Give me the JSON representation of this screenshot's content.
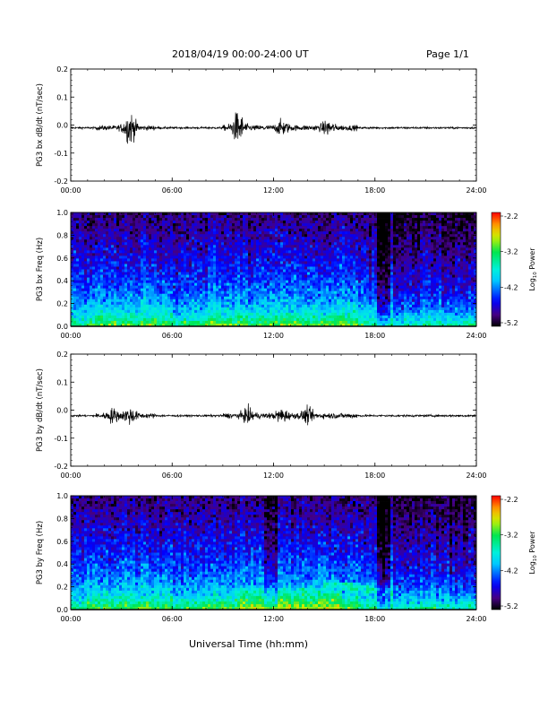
{
  "header": {
    "title": "2018/04/19  00:00-24:00 UT",
    "page": "Page 1/1"
  },
  "footer": {
    "xlabel": "Universal Time (hh:mm)"
  },
  "colorbar": {
    "label_main": "Log",
    "label_sub": "10",
    "label_tail": " Power",
    "ticks": [
      "-2.2",
      "-3.2",
      "-4.2",
      "-5.2"
    ],
    "range": [
      -5.2,
      -2.2
    ]
  },
  "chart_data": [
    {
      "type": "line",
      "ylabel": "PG3 bx dB/dt (nT/sec)",
      "x_ticks": [
        "00:00",
        "06:00",
        "12:00",
        "18:00",
        "24:00"
      ],
      "xlim": [
        0,
        24
      ],
      "ylim": [
        -0.2,
        0.2
      ],
      "y_ticks": [
        "0.2",
        "0.1",
        "0.0",
        "-0.1",
        "-0.2"
      ],
      "series": [
        {
          "baseline": -0.01,
          "bursts": [
            {
              "t": 3.5,
              "amp": 0.05
            },
            {
              "t": 9.9,
              "amp": 0.05
            },
            {
              "t": 12.5,
              "amp": 0.02
            },
            {
              "t": 15.2,
              "amp": 0.02
            }
          ]
        }
      ]
    },
    {
      "type": "heatmap",
      "ylabel": "PG3 bx Freq (Hz)",
      "x_ticks": [
        "00:00",
        "06:00",
        "12:00",
        "18:00",
        "24:00"
      ],
      "xlim": [
        0,
        24
      ],
      "ylim": [
        0,
        1.0
      ],
      "y_ticks": [
        "1.0",
        "0.8",
        "0.6",
        "0.4",
        "0.2",
        "0.0"
      ],
      "zlim": [
        -5.2,
        -2.2
      ],
      "zlabel": "Log10 Power"
    },
    {
      "type": "line",
      "ylabel": "PG3 by dB/dt (nT/sec)",
      "x_ticks": [
        "00:00",
        "06:00",
        "12:00",
        "18:00",
        "24:00"
      ],
      "xlim": [
        0,
        24
      ],
      "ylim": [
        -0.2,
        0.2
      ],
      "y_ticks": [
        "0.2",
        "0.1",
        "0.0",
        "-0.1",
        "-0.2"
      ],
      "series": [
        {
          "baseline": -0.02,
          "bursts": [
            {
              "t": 2.5,
              "amp": 0.02
            },
            {
              "t": 3.5,
              "amp": 0.025
            },
            {
              "t": 10.5,
              "amp": 0.02
            },
            {
              "t": 12.5,
              "amp": 0.02
            },
            {
              "t": 14.0,
              "amp": 0.02
            }
          ]
        }
      ]
    },
    {
      "type": "heatmap",
      "ylabel": "PG3 by Freq (Hz)",
      "x_ticks": [
        "00:00",
        "06:00",
        "12:00",
        "18:00",
        "24:00"
      ],
      "xlim": [
        0,
        24
      ],
      "ylim": [
        0,
        1.0
      ],
      "y_ticks": [
        "1.0",
        "0.8",
        "0.6",
        "0.4",
        "0.2",
        "0.0"
      ],
      "zlim": [
        -5.2,
        -2.2
      ],
      "zlabel": "Log10 Power"
    }
  ]
}
